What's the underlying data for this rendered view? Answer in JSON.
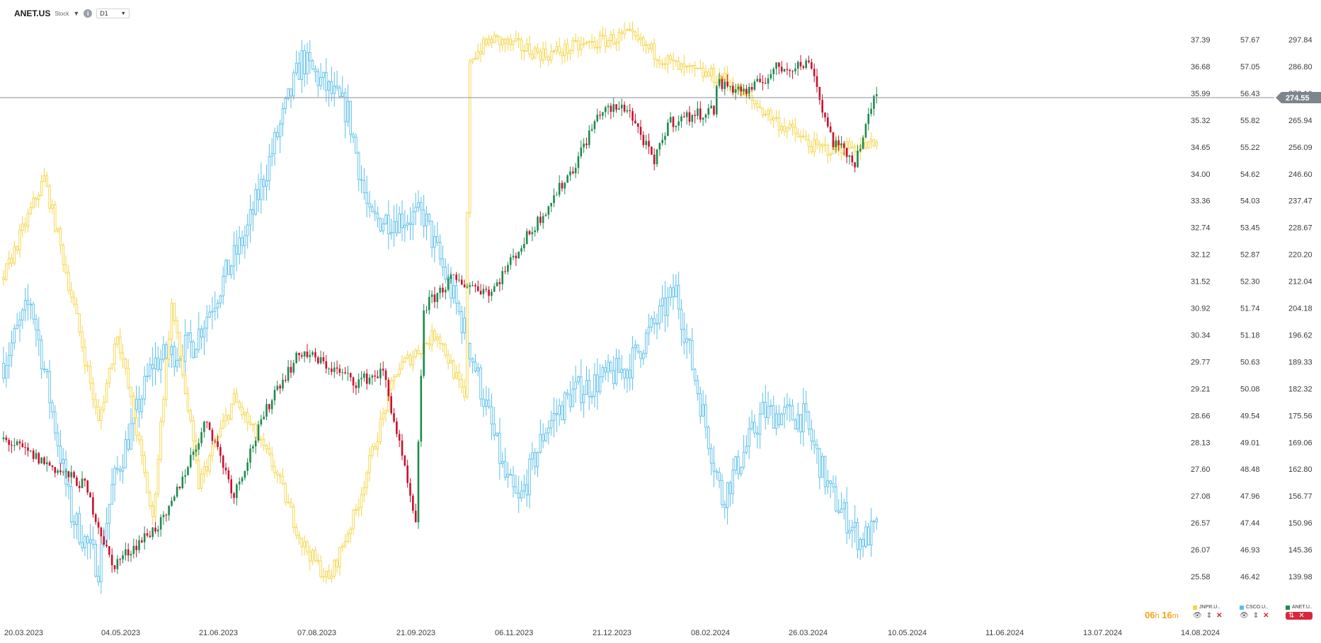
{
  "header": {
    "symbol": "ANET.US",
    "kind": "Stock",
    "timeframe": "D1",
    "info_icon": "info-icon",
    "dropdown_icon": "chevron-down-icon"
  },
  "current_price": "274.55",
  "countdown": {
    "hours": "06",
    "h_unit": "h",
    "minutes": "16",
    "m_unit": "m"
  },
  "legend": [
    {
      "label": "JNPR.U..",
      "color": "#f5d547"
    },
    {
      "label": "CSCO.U..",
      "color": "#5bbfea"
    },
    {
      "label": "ANET.U..",
      "color": "#1f8a4c"
    }
  ],
  "chart_data": {
    "type": "candlestick-overlay",
    "x_tick_labels": [
      "20.03.2023",
      "04.05.2023",
      "21.06.2023",
      "07.08.2023",
      "21.09.2023",
      "06.11.2023",
      "21.12.2023",
      "08.02.2024",
      "26.03.2024",
      "10.05.2024",
      "11.06.2024",
      "13.07.2024",
      "14.08.2024"
    ],
    "axis_jnpr": [
      "37.39",
      "36.68",
      "35.99",
      "35.32",
      "34.65",
      "34.00",
      "33.36",
      "32.74",
      "32.12",
      "31.52",
      "30.92",
      "30.34",
      "29.77",
      "29.21",
      "28.66",
      "28.13",
      "27.60",
      "27.08",
      "26.57",
      "26.07",
      "25.58"
    ],
    "axis_csco": [
      "57.67",
      "57.05",
      "56.43",
      "55.82",
      "55.22",
      "54.62",
      "54.03",
      "53.45",
      "52.87",
      "52.30",
      "51.74",
      "51.18",
      "50.63",
      "50.08",
      "49.54",
      "49.01",
      "48.48",
      "47.96",
      "47.44",
      "46.93",
      "46.42"
    ],
    "axis_anet": [
      "297.84",
      "286.80",
      "276.10",
      "265.94",
      "256.09",
      "246.60",
      "237.47",
      "228.67",
      "220.20",
      "212.04",
      "204.18",
      "196.62",
      "189.33",
      "182.32",
      "175.56",
      "169.06",
      "162.80",
      "156.77",
      "150.96",
      "145.36",
      "139.98"
    ],
    "colors": {
      "up": "#1f8a4c",
      "down": "#c8102e",
      "jnpr": "#f5d547",
      "csco": "#5bbfea"
    },
    "series": [
      {
        "name": "ANET.US",
        "keypoints": [
          [
            0,
            169.8
          ],
          [
            30,
            159
          ],
          [
            40,
            142
          ],
          [
            60,
            151.9
          ],
          [
            75,
            174.4
          ],
          [
            85,
            157
          ],
          [
            100,
            181.8
          ],
          [
            110,
            192.1
          ],
          [
            130,
            184
          ],
          [
            140,
            186.6
          ],
          [
            152,
            150
          ],
          [
            155,
            204
          ],
          [
            165,
            212.6
          ],
          [
            180,
            209
          ],
          [
            198,
            232
          ],
          [
            210,
            248.5
          ],
          [
            220,
            269.1
          ],
          [
            230,
            271
          ],
          [
            240,
            250
          ],
          [
            245,
            265
          ],
          [
            262,
            270
          ],
          [
            263,
            280
          ],
          [
            275,
            276.8
          ],
          [
            285,
            285.9
          ],
          [
            298,
            288
          ],
          [
            302,
            269.8
          ],
          [
            306,
            257.8
          ],
          [
            314,
            251
          ],
          [
            318,
            263
          ],
          [
            322,
            277
          ]
        ]
      },
      {
        "name": "JNPR.US",
        "keypoints": [
          [
            0,
            31.6
          ],
          [
            15,
            33.9
          ],
          [
            28,
            30.4
          ],
          [
            35,
            28.5
          ],
          [
            42,
            30.4
          ],
          [
            55,
            26.6
          ],
          [
            62,
            31
          ],
          [
            72,
            27.3
          ],
          [
            85,
            29.0
          ],
          [
            100,
            27.6
          ],
          [
            110,
            26.2
          ],
          [
            120,
            25.5
          ],
          [
            130,
            26.8
          ],
          [
            145,
            29.6
          ],
          [
            160,
            30.4
          ],
          [
            170,
            29.0
          ],
          [
            172,
            36.9
          ],
          [
            180,
            37.4
          ],
          [
            200,
            37.0
          ],
          [
            230,
            37.5
          ],
          [
            250,
            36.6
          ],
          [
            265,
            36.4
          ],
          [
            285,
            35.3
          ],
          [
            300,
            34.6
          ],
          [
            322,
            34.7
          ]
        ]
      },
      {
        "name": "CSCO.US",
        "keypoints": [
          [
            0,
            50.6
          ],
          [
            10,
            51.9
          ],
          [
            25,
            47.6
          ],
          [
            35,
            46.6
          ],
          [
            40,
            48.1
          ],
          [
            55,
            50.6
          ],
          [
            70,
            51.0
          ],
          [
            90,
            53.4
          ],
          [
            110,
            57.2
          ],
          [
            127,
            56.0
          ],
          [
            135,
            53.6
          ],
          [
            155,
            53.7
          ],
          [
            170,
            51.3
          ],
          [
            185,
            48.3
          ],
          [
            190,
            47.8
          ],
          [
            200,
            49.3
          ],
          [
            210,
            50.0
          ],
          [
            230,
            50.5
          ],
          [
            248,
            52.1
          ],
          [
            255,
            50.3
          ],
          [
            265,
            47.9
          ],
          [
            280,
            49.6
          ],
          [
            295,
            49.5
          ],
          [
            305,
            48.0
          ],
          [
            316,
            47.1
          ],
          [
            322,
            47.3
          ]
        ]
      }
    ]
  }
}
